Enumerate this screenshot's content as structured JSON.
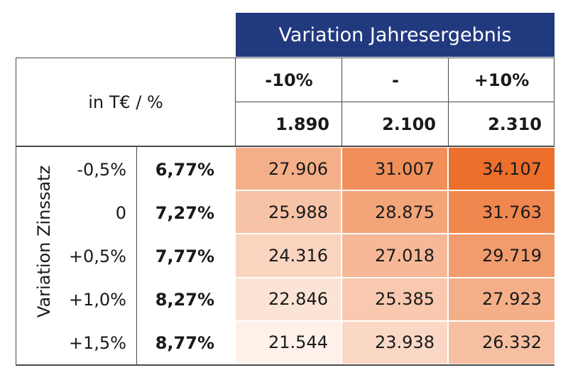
{
  "header": {
    "banner": "Variation Jahresergebnis",
    "corner_label": "in T€ / %",
    "columns": [
      {
        "variation": "-10%",
        "value": "1.890"
      },
      {
        "variation": "-",
        "value": "2.100"
      },
      {
        "variation": "+10%",
        "value": "2.310"
      }
    ]
  },
  "row_axis_label": "Variation Zinssatz",
  "rows": [
    {
      "variation": "-0,5%",
      "rate": "6,77%",
      "values": [
        "27.906",
        "31.007",
        "34.107"
      ]
    },
    {
      "variation": "0",
      "rate": "7,27%",
      "values": [
        "25.988",
        "28.875",
        "31.763"
      ]
    },
    {
      "variation": "+0,5%",
      "rate": "7,77%",
      "values": [
        "24.316",
        "27.018",
        "29.719"
      ]
    },
    {
      "variation": "+1,0%",
      "rate": "8,27%",
      "values": [
        "22.846",
        "25.385",
        "27.923"
      ]
    },
    {
      "variation": "+1,5%",
      "rate": "8,77%",
      "values": [
        "21.544",
        "23.938",
        "26.332"
      ]
    }
  ],
  "colors": {
    "banner": "#21397f",
    "heat_low": "#fdf1e9",
    "heat_high": "#ec6f2b"
  }
}
